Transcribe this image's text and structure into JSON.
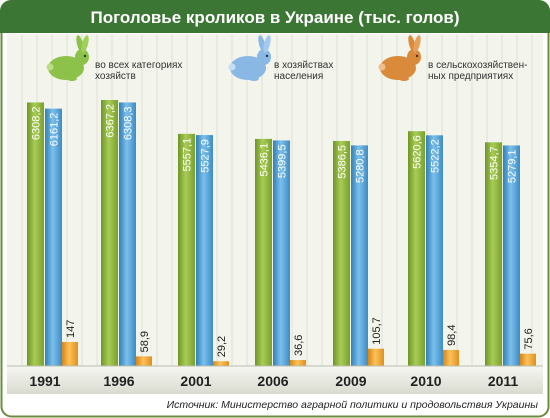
{
  "chart_data": {
    "type": "bar",
    "title": "Поголовье кроликов в Украине (тыс. голов)",
    "categories": [
      "1991",
      "1996",
      "2001",
      "2006",
      "2009",
      "2010",
      "2011"
    ],
    "series": [
      {
        "name": "во всех категориях хозяйств",
        "values": [
          6308.2,
          6367.2,
          5557.1,
          5436.1,
          5386.5,
          5620.6,
          5354.7
        ],
        "labels": [
          "6308,2",
          "6367,2",
          "5557,1",
          "5436,1",
          "5386,5",
          "5620,6",
          "5354,7"
        ],
        "color": "#8cb33c"
      },
      {
        "name": "в хозяйствах населения",
        "values": [
          6161.2,
          6308.3,
          5527.9,
          5399.5,
          5280.8,
          5522.2,
          5279.1
        ],
        "labels": [
          "6161,2",
          "6308,3",
          "5527,9",
          "5399,5",
          "5280,8",
          "5522,2",
          "5279,1"
        ],
        "color": "#4a9fd0"
      },
      {
        "name": "в сельскохозяйствен-ных предприятиях",
        "values": [
          147,
          58.9,
          29.2,
          36.6,
          105.7,
          98.4,
          75.6
        ],
        "labels": [
          "147",
          "58,9",
          "29,2",
          "36,6",
          "105,7",
          "98,4",
          "75,6"
        ],
        "color": "#f0a022"
      }
    ],
    "ylim": [
      0,
      6500
    ],
    "grid": true,
    "legend_position": "top"
  },
  "legend": {
    "items": [
      {
        "icon": "rabbit-green-icon",
        "label_lines": [
          "во всех категориях",
          "хозяйств"
        ],
        "color": "#8dc24a"
      },
      {
        "icon": "rabbit-blue-icon",
        "label_lines": [
          "в хозяйствах",
          "населения"
        ],
        "color": "#8ab8e4"
      },
      {
        "icon": "rabbit-orange-icon",
        "label_lines": [
          "в сельскохозяйствен-",
          "ных предприятиях"
        ],
        "color": "#d98a3a"
      }
    ]
  },
  "source": "Источник: Министерство аграрной политики и продовольствия Украины",
  "colors": {
    "title_bar": "#3b7634",
    "frame_border": "#6a8c3c",
    "background": "#f3f4ec",
    "grid": "#dfe2d5"
  }
}
